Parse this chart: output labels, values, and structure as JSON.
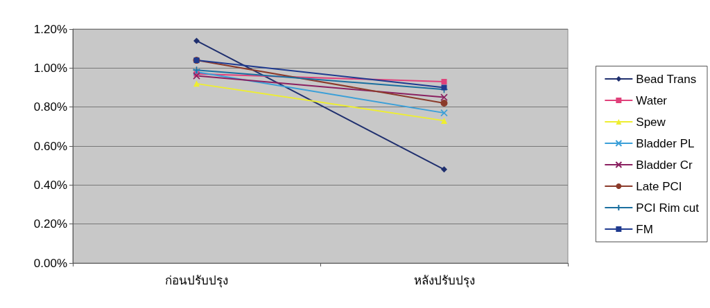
{
  "chart_data": {
    "type": "line",
    "categories": [
      "ก่อนปรับปรุง",
      "หลังปรับปรุง"
    ],
    "series": [
      {
        "name": "Bead Trans",
        "color": "#1f2f6e",
        "marker": "diamond",
        "values": [
          0.0114,
          0.0048
        ]
      },
      {
        "name": "Water",
        "color": "#e0407a",
        "marker": "square",
        "values": [
          0.0097,
          0.0093
        ]
      },
      {
        "name": "Spew",
        "color": "#eeee30",
        "marker": "triangle",
        "values": [
          0.0092,
          0.0073
        ]
      },
      {
        "name": "Bladder PL",
        "color": "#3a9fd8",
        "marker": "cross",
        "values": [
          0.0098,
          0.0077
        ]
      },
      {
        "name": "Bladder Cr",
        "color": "#8a2060",
        "marker": "cross",
        "values": [
          0.0096,
          0.0085
        ]
      },
      {
        "name": "Late PCI",
        "color": "#8b3a2a",
        "marker": "circle",
        "values": [
          0.0104,
          0.0082
        ]
      },
      {
        "name": "PCI Rim cut",
        "color": "#1a6f9f",
        "marker": "plus",
        "values": [
          0.0099,
          0.0089
        ]
      },
      {
        "name": "FM",
        "color": "#1f3a8f",
        "marker": "square",
        "values": [
          0.0104,
          0.009
        ]
      }
    ],
    "ylim": [
      0,
      0.012
    ],
    "yticks": [
      {
        "value": 0,
        "label": "0.00%"
      },
      {
        "value": 0.002,
        "label": "0.20%"
      },
      {
        "value": 0.004,
        "label": "0.40%"
      },
      {
        "value": 0.006,
        "label": "0.60%"
      },
      {
        "value": 0.008,
        "label": "0.80%"
      },
      {
        "value": 0.01,
        "label": "1.00%"
      },
      {
        "value": 0.012,
        "label": "1.20%"
      }
    ],
    "grid": "y",
    "legend": "right"
  }
}
